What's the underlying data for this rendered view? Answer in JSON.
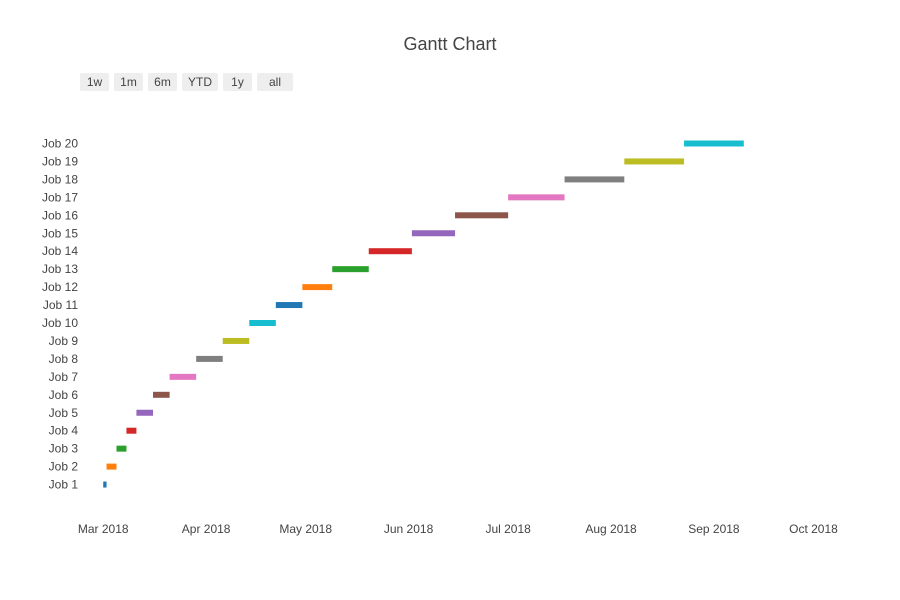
{
  "chart_data": {
    "type": "gantt",
    "title": "Gantt Chart",
    "xlabel": "",
    "ylabel": "",
    "x_axis_type": "date",
    "xlim": [
      "2018-02-22",
      "2018-10-12"
    ],
    "x_ticks": [
      {
        "value": "2018-03-01",
        "label": "Mar 2018"
      },
      {
        "value": "2018-04-01",
        "label": "Apr 2018"
      },
      {
        "value": "2018-05-01",
        "label": "May 2018"
      },
      {
        "value": "2018-06-01",
        "label": "Jun 2018"
      },
      {
        "value": "2018-07-01",
        "label": "Jul 2018"
      },
      {
        "value": "2018-08-01",
        "label": "Aug 2018"
      },
      {
        "value": "2018-09-01",
        "label": "Sep 2018"
      },
      {
        "value": "2018-10-01",
        "label": "Oct 2018"
      }
    ],
    "grid": false,
    "legend": "none",
    "range_buttons": [
      "1w",
      "1m",
      "6m",
      "YTD",
      "1y",
      "all"
    ],
    "tasks": [
      {
        "name": "Job 1",
        "start": "2018-03-01",
        "end": "2018-03-02",
        "color": "#1f77b4"
      },
      {
        "name": "Job 2",
        "start": "2018-03-02",
        "end": "2018-03-05",
        "color": "#ff7f0e"
      },
      {
        "name": "Job 3",
        "start": "2018-03-05",
        "end": "2018-03-08",
        "color": "#2ca02c"
      },
      {
        "name": "Job 4",
        "start": "2018-03-08",
        "end": "2018-03-11",
        "color": "#d62728"
      },
      {
        "name": "Job 5",
        "start": "2018-03-11",
        "end": "2018-03-16",
        "color": "#9467bd"
      },
      {
        "name": "Job 6",
        "start": "2018-03-16",
        "end": "2018-03-21",
        "color": "#8c564b"
      },
      {
        "name": "Job 7",
        "start": "2018-03-21",
        "end": "2018-03-29",
        "color": "#e377c2"
      },
      {
        "name": "Job 8",
        "start": "2018-03-29",
        "end": "2018-04-06",
        "color": "#7f7f7f"
      },
      {
        "name": "Job 9",
        "start": "2018-04-06",
        "end": "2018-04-14",
        "color": "#bcbd22"
      },
      {
        "name": "Job 10",
        "start": "2018-04-14",
        "end": "2018-04-22",
        "color": "#17becf"
      },
      {
        "name": "Job 11",
        "start": "2018-04-22",
        "end": "2018-04-30",
        "color": "#1f77b4"
      },
      {
        "name": "Job 12",
        "start": "2018-04-30",
        "end": "2018-05-09",
        "color": "#ff7f0e"
      },
      {
        "name": "Job 13",
        "start": "2018-05-09",
        "end": "2018-05-20",
        "color": "#2ca02c"
      },
      {
        "name": "Job 14",
        "start": "2018-05-20",
        "end": "2018-06-02",
        "color": "#d62728"
      },
      {
        "name": "Job 15",
        "start": "2018-06-02",
        "end": "2018-06-15",
        "color": "#9467bd"
      },
      {
        "name": "Job 16",
        "start": "2018-06-15",
        "end": "2018-07-01",
        "color": "#8c564b"
      },
      {
        "name": "Job 17",
        "start": "2018-07-01",
        "end": "2018-07-18",
        "color": "#e377c2"
      },
      {
        "name": "Job 18",
        "start": "2018-07-18",
        "end": "2018-08-05",
        "color": "#7f7f7f"
      },
      {
        "name": "Job 19",
        "start": "2018-08-05",
        "end": "2018-08-23",
        "color": "#bcbd22"
      },
      {
        "name": "Job 20",
        "start": "2018-08-23",
        "end": "2018-09-10",
        "color": "#17becf"
      }
    ]
  }
}
